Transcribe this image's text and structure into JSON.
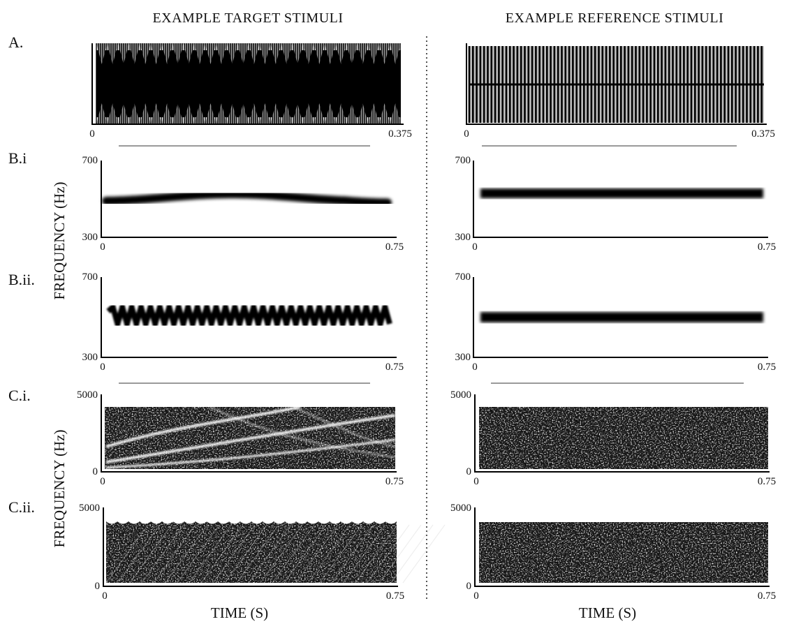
{
  "figure": {
    "titles": {
      "target": "EXAMPLE TARGET STIMULI",
      "reference": "EXAMPLE REFERENCE STIMULI"
    },
    "y_axis_label": "FREQUENCY (Hz)",
    "x_axis_label": "TIME (S)",
    "panels": [
      {
        "id": "A",
        "row_label": "A.",
        "type": "waveform",
        "target": {
          "x_min": "0",
          "x_max": "0.375"
        },
        "reference": {
          "x_min": "0",
          "x_max": "0.375"
        }
      },
      {
        "id": "Bi",
        "row_label": "B.i",
        "type": "pitch-contour",
        "target": {
          "y_max": "700",
          "y_min": "300",
          "x_min": "0",
          "x_max": "0.75",
          "modulation": "slow sinusoidal"
        },
        "reference": {
          "y_max": "700",
          "y_min": "300",
          "x_min": "0",
          "x_max": "0.75",
          "modulation": "flat"
        }
      },
      {
        "id": "Bii",
        "row_label": "B.ii.",
        "type": "pitch-contour",
        "target": {
          "y_max": "700",
          "y_min": "300",
          "x_min": "0",
          "x_max": "0.75",
          "modulation": "fast zigzag"
        },
        "reference": {
          "y_max": "700",
          "y_min": "300",
          "x_min": "0",
          "x_max": "0.75",
          "modulation": "flat"
        }
      },
      {
        "id": "Ci",
        "row_label": "C.i.",
        "type": "spectrogram",
        "target": {
          "y_max": "5000",
          "y_min": "0",
          "x_min": "0",
          "x_max": "0.75",
          "texture": "rising harmonic sweeps"
        },
        "reference": {
          "y_max": "5000",
          "y_min": "0",
          "x_min": "0",
          "x_max": "0.75",
          "texture": "noise"
        }
      },
      {
        "id": "Cii",
        "row_label": "C.ii.",
        "type": "spectrogram",
        "target": {
          "y_max": "5000",
          "y_min": "0",
          "x_min": "0",
          "x_max": "0.75",
          "texture": "dense repeating sweeps"
        },
        "reference": {
          "y_max": "5000",
          "y_min": "0",
          "x_min": "0",
          "x_max": "0.75",
          "texture": "noise"
        }
      }
    ]
  }
}
